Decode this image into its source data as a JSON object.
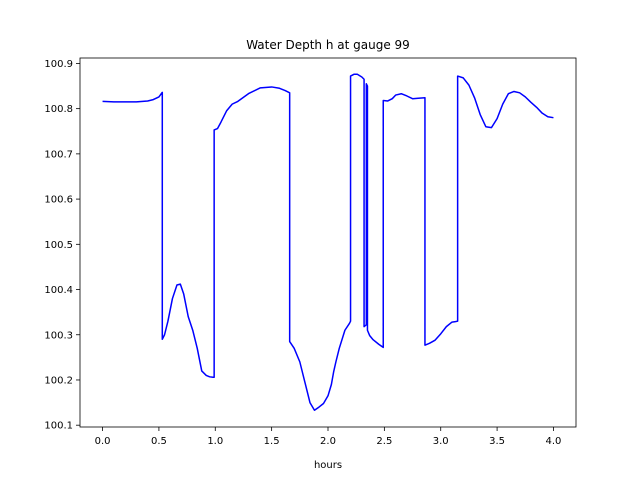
{
  "chart_data": {
    "type": "line",
    "title": "Water Depth h at gauge 99",
    "xlabel": "hours",
    "ylabel": "",
    "xlim": [
      -0.2,
      4.2
    ],
    "ylim": [
      100.096,
      100.912
    ],
    "xticks": [
      0.0,
      0.5,
      1.0,
      1.5,
      2.0,
      2.5,
      3.0,
      3.5,
      4.0
    ],
    "xtick_labels": [
      "0.0",
      "0.5",
      "1.0",
      "1.5",
      "2.0",
      "2.5",
      "3.0",
      "3.5",
      "4.0"
    ],
    "yticks": [
      100.1,
      100.2,
      100.3,
      100.4,
      100.5,
      100.6,
      100.7,
      100.8,
      100.9
    ],
    "ytick_labels": [
      "100.1",
      "100.2",
      "100.3",
      "100.4",
      "100.5",
      "100.6",
      "100.7",
      "100.8",
      "100.9"
    ],
    "grid": false,
    "colors": {
      "series": "#0000ff",
      "axes": "#000000"
    },
    "series": [
      {
        "name": "",
        "x": [
          0.0,
          0.1,
          0.2,
          0.3,
          0.4,
          0.45,
          0.5,
          0.53,
          0.53,
          0.55,
          0.58,
          0.62,
          0.66,
          0.69,
          0.72,
          0.76,
          0.8,
          0.84,
          0.88,
          0.92,
          0.95,
          0.98,
          0.99,
          0.99,
          1.02,
          1.05,
          1.1,
          1.15,
          1.2,
          1.3,
          1.4,
          1.5,
          1.57,
          1.62,
          1.66,
          1.66,
          1.7,
          1.75,
          1.8,
          1.84,
          1.88,
          1.92,
          1.96,
          2.0,
          2.03,
          2.05,
          2.07,
          2.1,
          2.15,
          2.19,
          2.2,
          2.2,
          2.23,
          2.26,
          2.3,
          2.32,
          2.32,
          2.33,
          2.34,
          2.34,
          2.35,
          2.35,
          2.37,
          2.4,
          2.45,
          2.49,
          2.49,
          2.53,
          2.57,
          2.6,
          2.65,
          2.7,
          2.75,
          2.8,
          2.86,
          2.86,
          2.9,
          2.95,
          3.0,
          3.05,
          3.1,
          3.13,
          3.15,
          3.15,
          3.2,
          3.25,
          3.3,
          3.35,
          3.4,
          3.45,
          3.5,
          3.55,
          3.6,
          3.65,
          3.7,
          3.75,
          3.8,
          3.85,
          3.9,
          3.95,
          4.0
        ],
        "values": [
          100.816,
          100.815,
          100.815,
          100.815,
          100.817,
          100.82,
          100.826,
          100.836,
          100.29,
          100.3,
          100.33,
          100.38,
          100.41,
          100.412,
          100.39,
          100.34,
          100.31,
          100.27,
          100.22,
          100.21,
          100.207,
          100.206,
          100.206,
          100.753,
          100.756,
          100.77,
          100.795,
          100.81,
          100.816,
          100.834,
          100.846,
          100.848,
          100.845,
          100.84,
          100.835,
          100.285,
          100.27,
          100.24,
          100.19,
          100.15,
          100.133,
          100.14,
          100.148,
          100.165,
          100.19,
          100.218,
          100.24,
          100.27,
          100.31,
          100.325,
          100.33,
          100.872,
          100.876,
          100.876,
          100.87,
          100.865,
          100.318,
          100.32,
          100.322,
          100.855,
          100.85,
          100.31,
          100.298,
          100.289,
          100.279,
          100.272,
          100.818,
          100.817,
          100.822,
          100.83,
          100.833,
          100.828,
          100.822,
          100.823,
          100.824,
          100.277,
          100.281,
          100.288,
          100.302,
          100.318,
          100.328,
          100.329,
          100.33,
          100.872,
          100.868,
          100.852,
          100.824,
          100.787,
          100.76,
          100.758,
          100.778,
          100.81,
          100.833,
          100.838,
          100.835,
          100.826,
          100.814,
          100.803,
          100.79,
          100.782,
          100.78
        ]
      }
    ]
  }
}
